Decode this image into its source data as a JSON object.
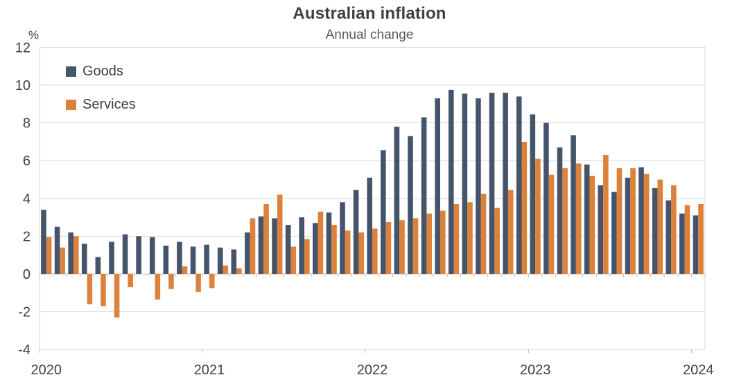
{
  "chart_data": {
    "type": "bar",
    "title": "Australian inflation",
    "subtitle": "Annual change",
    "unit": "%",
    "grid": true,
    "legend_position": "inside-top-left",
    "ylim": [
      -4,
      12
    ],
    "ytick_step": 2,
    "y_ticks": [
      12,
      10,
      8,
      6,
      4,
      2,
      0,
      -2,
      -4
    ],
    "x_year_labels": [
      "2020",
      "2021",
      "2022",
      "2023",
      "2024"
    ],
    "x": [
      "Jan 2020",
      "Feb 2020",
      "Mar 2020",
      "Apr 2020",
      "May 2020",
      "Jun 2020",
      "Jul 2020",
      "Aug 2020",
      "Sep 2020",
      "Oct 2020",
      "Nov 2020",
      "Dec 2020",
      "Jan 2021",
      "Feb 2021",
      "Mar 2021",
      "Apr 2021",
      "May 2021",
      "Jun 2021",
      "Jul 2021",
      "Aug 2021",
      "Sep 2021",
      "Oct 2021",
      "Nov 2021",
      "Dec 2021",
      "Jan 2022",
      "Feb 2022",
      "Mar 2022",
      "Apr 2022",
      "May 2022",
      "Jun 2022",
      "Jul 2022",
      "Aug 2022",
      "Sep 2022",
      "Oct 2022",
      "Nov 2022",
      "Dec 2022",
      "Jan 2023",
      "Feb 2023",
      "Mar 2023",
      "Apr 2023",
      "May 2023",
      "Jun 2023",
      "Jul 2023",
      "Aug 2023",
      "Sep 2023",
      "Oct 2023",
      "Nov 2023",
      "Dec 2023",
      "Jan 2024"
    ],
    "series": [
      {
        "name": "Goods",
        "color": "#44546A",
        "values": [
          3.4,
          2.5,
          2.2,
          1.6,
          0.9,
          1.7,
          2.1,
          2.0,
          1.95,
          1.5,
          1.7,
          1.45,
          1.55,
          1.4,
          1.3,
          2.2,
          3.05,
          2.95,
          2.6,
          3.0,
          2.7,
          3.25,
          3.8,
          4.45,
          5.1,
          6.55,
          7.8,
          7.3,
          8.3,
          9.3,
          9.75,
          9.55,
          9.3,
          9.6,
          9.6,
          9.4,
          8.45,
          8.0,
          6.7,
          7.35,
          5.8,
          4.7,
          4.35,
          5.1,
          5.65,
          4.55,
          3.9,
          3.2,
          3.1
        ]
      },
      {
        "name": "Services",
        "color": "#DC823C",
        "values": [
          1.95,
          1.4,
          2.0,
          -1.6,
          -1.7,
          -2.3,
          -0.7,
          0.0,
          -1.35,
          -0.8,
          0.4,
          -0.95,
          -0.75,
          0.45,
          0.3,
          2.95,
          3.7,
          4.2,
          1.45,
          1.85,
          3.3,
          2.6,
          2.3,
          2.2,
          2.4,
          2.75,
          2.85,
          2.95,
          3.2,
          3.35,
          3.7,
          3.8,
          4.25,
          3.5,
          4.45,
          7.0,
          6.1,
          5.25,
          5.6,
          5.85,
          5.2,
          6.3,
          5.6,
          5.6,
          5.3,
          5.0,
          4.7,
          3.65,
          3.7
        ]
      }
    ],
    "colors": {
      "gridline": "#D9D9D9",
      "axis": "#BFBFBF",
      "label": "#404040",
      "title": "#3F3F3F",
      "subtitle": "#595959"
    }
  }
}
